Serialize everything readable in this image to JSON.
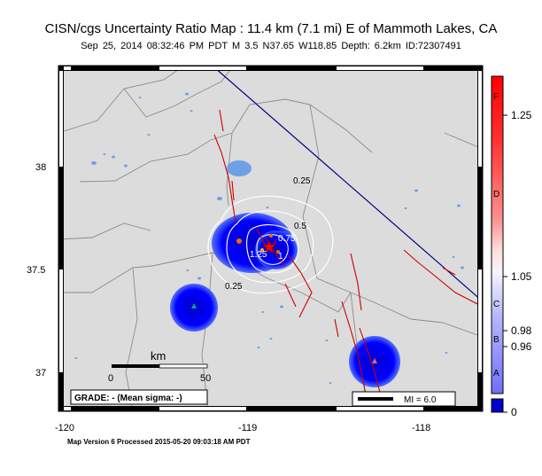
{
  "header": {
    "title": "CISN/cgs Uncertainty Ratio Map : 11.4 km (7.1 mi) E of Mammoth Lakes, CA",
    "subtitle": "Sep 25, 2014 08:32:46 PM PDT   M 3.5   N37.65 W118.85   Depth: 6.2km   ID:72307491"
  },
  "map": {
    "lat_labels": [
      "38",
      "37.5",
      "37"
    ],
    "lon_labels": [
      "-120",
      "-119",
      "-118"
    ],
    "contour_labels": [
      "0.25",
      "0.5",
      "0.75",
      "1",
      "1.25",
      "0.25"
    ],
    "scale": {
      "title": "km",
      "start": "0",
      "end": "50"
    },
    "grade": "GRADE: - (Mean sigma: -)",
    "mi_legend": "MI = 6.0",
    "colors": {
      "land": "#dcdcdc",
      "water": "#6ea0e6",
      "fault": "#cc0000",
      "boundary": "#000080",
      "uncertainty": "#0000ff"
    }
  },
  "colorbar": {
    "letters": [
      "F",
      "D",
      "C",
      "B",
      "A"
    ],
    "values": [
      "1.25",
      "1.05",
      "0.98",
      "0.96",
      "0"
    ]
  },
  "footer": "Map Version 6 Processed 2015-05-20 09:03:18 AM PDT"
}
